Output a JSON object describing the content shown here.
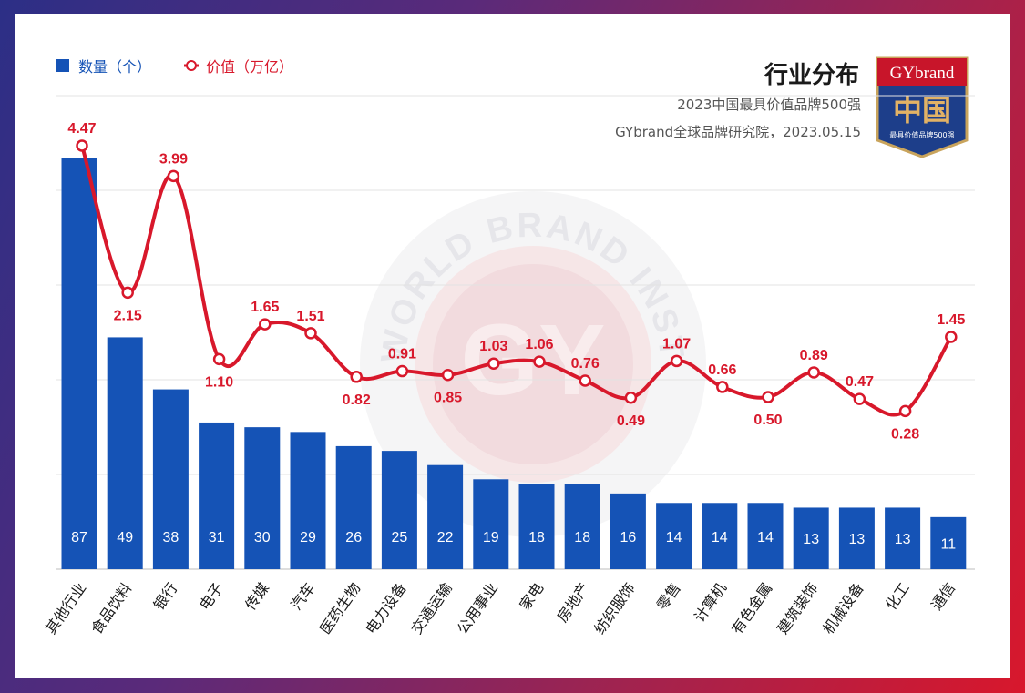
{
  "title": "行业分布",
  "subtitle1": "2023中国最具价值品牌500强",
  "subtitle2": "GYbrand全球品牌研究院，2023.05.15",
  "badge": {
    "top": "GYbrand",
    "middle": "中国",
    "bottom": "最具价值品牌500强"
  },
  "watermark": {
    "ring": "WORLD BRAND INSTITUTE",
    "center": "GY"
  },
  "legend": {
    "bar": "数量（个）",
    "line": "价值（万亿）"
  },
  "colors": {
    "bar": "#1553b6",
    "line": "#d8182b"
  },
  "chart_data": {
    "type": "bar",
    "title": "行业分布",
    "categories": [
      "其他行业",
      "食品饮料",
      "银行",
      "电子",
      "传媒",
      "汽车",
      "医药生物",
      "电力设备",
      "交通运输",
      "公用事业",
      "家电",
      "房地产",
      "纺织服饰",
      "零售",
      "计算机",
      "有色金属",
      "建筑装饰",
      "机械设备",
      "化工",
      "通信"
    ],
    "series": [
      {
        "name": "数量（个）",
        "type": "bar",
        "values": [
          87,
          49,
          38,
          31,
          30,
          29,
          26,
          25,
          22,
          19,
          18,
          18,
          16,
          14,
          14,
          14,
          13,
          13,
          13,
          11
        ]
      },
      {
        "name": "价值（万亿）",
        "type": "line",
        "values": [
          4.47,
          2.15,
          3.99,
          1.1,
          1.65,
          1.51,
          0.82,
          0.91,
          0.85,
          1.03,
          1.06,
          0.76,
          0.49,
          1.07,
          0.66,
          0.5,
          0.89,
          0.47,
          0.28,
          1.45
        ]
      }
    ],
    "legend": "top-left",
    "grid": true
  }
}
